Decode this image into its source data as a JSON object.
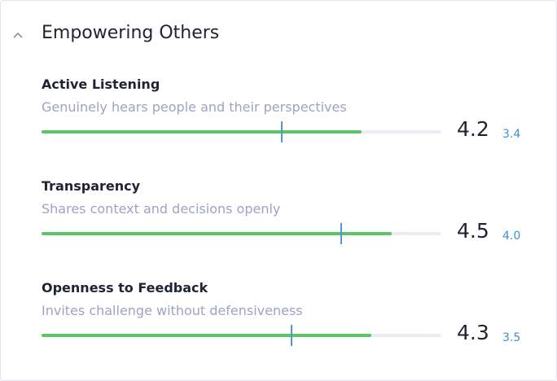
{
  "section": {
    "title": "Empowering Others",
    "scale": [
      1,
      5
    ],
    "items": [
      {
        "name": "Active Listening",
        "description": "Genuinely hears people and their perspectives",
        "score": 4.2,
        "benchmark": 3.4
      },
      {
        "name": "Transparency",
        "description": "Shares context and decisions openly",
        "score": 4.5,
        "benchmark": 4,
        "benchmark_label": "4.0"
      },
      {
        "name": "Openness to Feedback",
        "description": "Invites challenge without defensiveness",
        "score": 4.3,
        "benchmark": 3.5
      }
    ]
  }
}
